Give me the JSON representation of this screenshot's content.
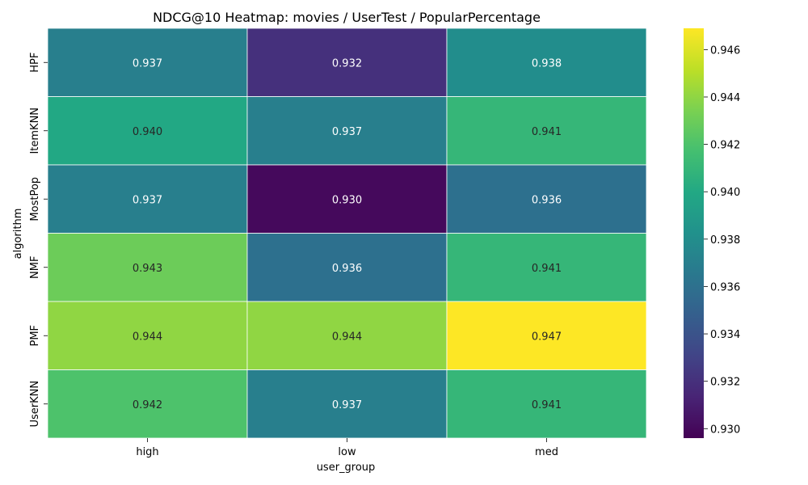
{
  "chart_data": {
    "type": "heatmap",
    "title": "NDCG@10 Heatmap: movies / UserTest / PopularPercentage",
    "xlabel": "user_group",
    "ylabel": "algorithm",
    "x_categories": [
      "high",
      "low",
      "med"
    ],
    "y_categories": [
      "HPF",
      "ItemKNN",
      "MostPop",
      "NMF",
      "PMF",
      "UserKNN"
    ],
    "values": [
      [
        0.937,
        0.932,
        0.938
      ],
      [
        0.94,
        0.937,
        0.941
      ],
      [
        0.937,
        0.93,
        0.936
      ],
      [
        0.943,
        0.936,
        0.941
      ],
      [
        0.944,
        0.944,
        0.947
      ],
      [
        0.942,
        0.937,
        0.941
      ]
    ],
    "value_labels": [
      [
        "0.937",
        "0.932",
        "0.938"
      ],
      [
        "0.940",
        "0.937",
        "0.941"
      ],
      [
        "0.937",
        "0.930",
        "0.936"
      ],
      [
        "0.943",
        "0.936",
        "0.941"
      ],
      [
        "0.944",
        "0.944",
        "0.947"
      ],
      [
        "0.942",
        "0.937",
        "0.941"
      ]
    ],
    "colormap": "viridis",
    "colorbar": {
      "range": [
        0.9296,
        0.9469
      ],
      "ticks": [
        0.93,
        0.932,
        0.934,
        0.936,
        0.938,
        0.94,
        0.942,
        0.944,
        0.946
      ],
      "tick_labels": [
        "0.930",
        "0.932",
        "0.934",
        "0.936",
        "0.938",
        "0.940",
        "0.942",
        "0.944",
        "0.946"
      ]
    },
    "text_color_dark": "#262626",
    "text_color_light": "#ffffff",
    "gridline_color": "#ffffff"
  }
}
